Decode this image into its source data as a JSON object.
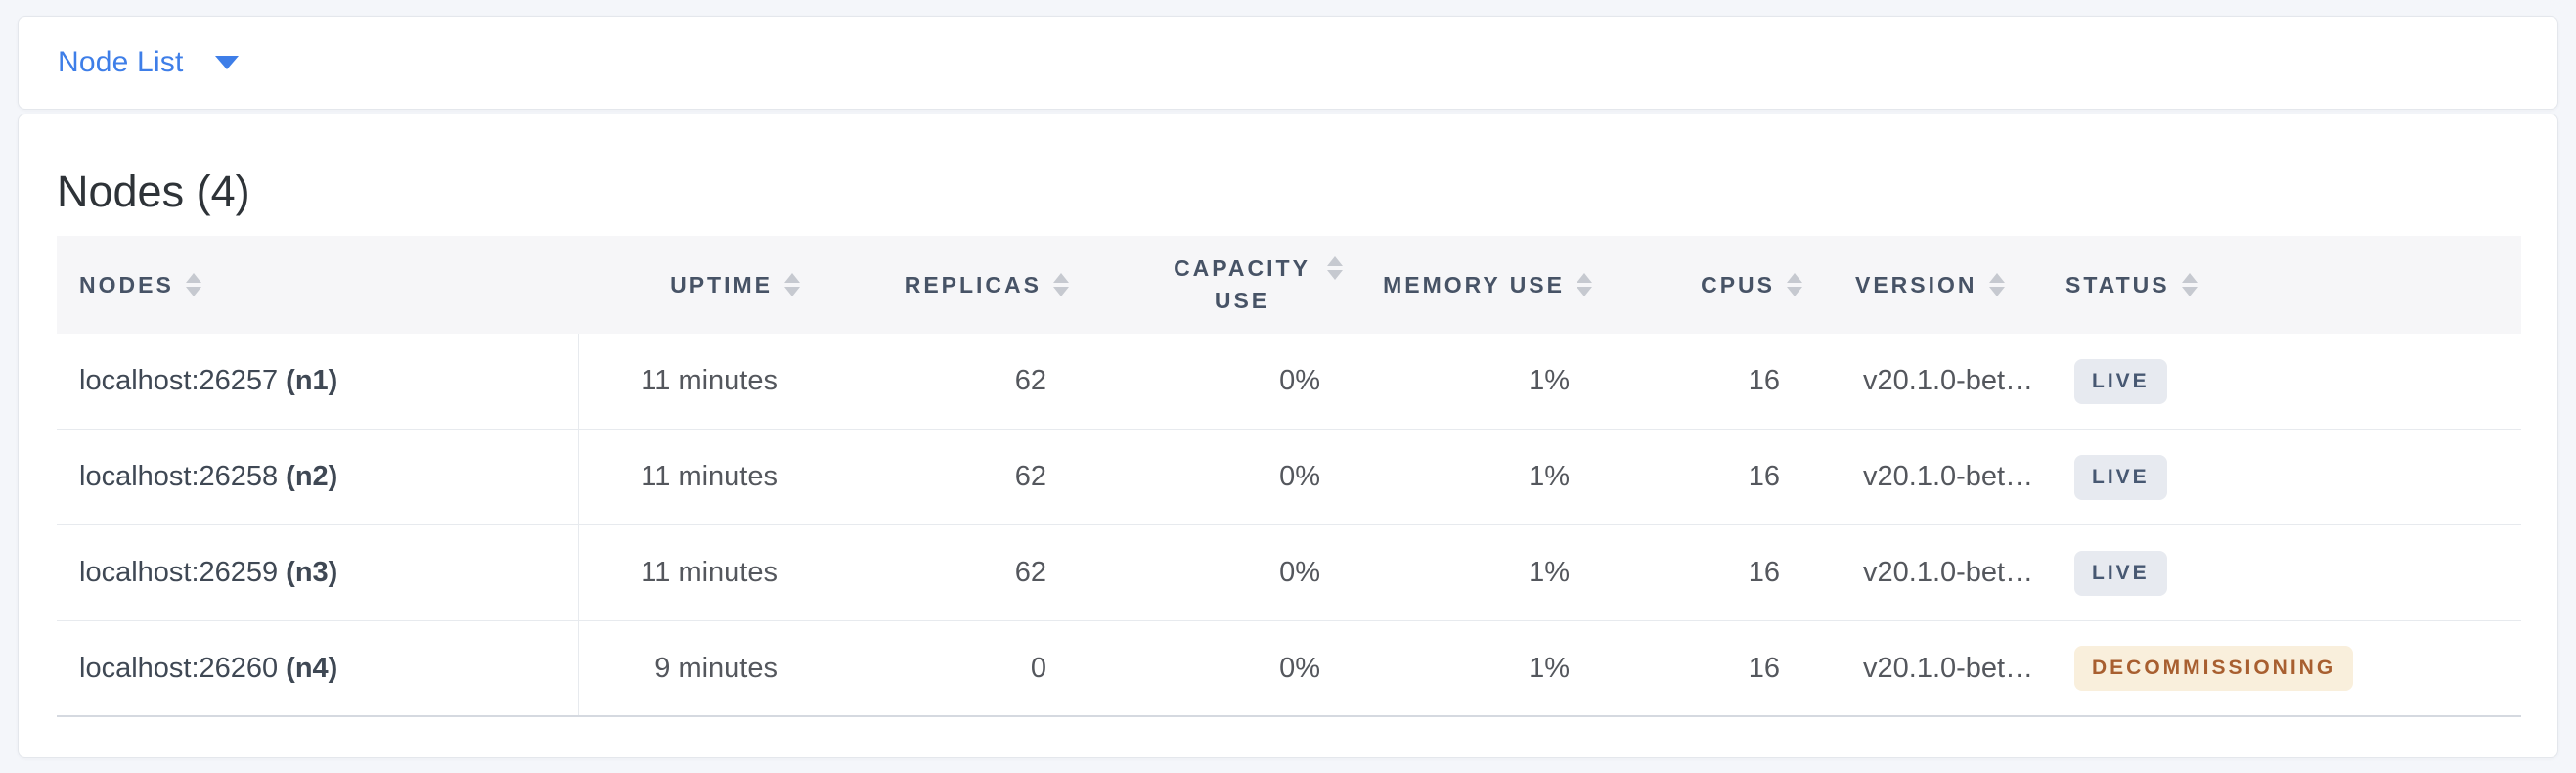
{
  "colors": {
    "accent_blue": "#3E7EE8",
    "page_background": "#F4F6FA",
    "header_text": "#475366",
    "live_badge_bg": "#E7EAF0",
    "live_badge_text": "#475872",
    "decommissioning_badge_bg": "#F9EFDC",
    "decommissioning_badge_text": "#A85F30"
  },
  "selector": {
    "label": "Node List"
  },
  "panel": {
    "title": "Nodes (4)"
  },
  "table": {
    "columns": [
      {
        "id": "nodes",
        "label": "NODES"
      },
      {
        "id": "uptime",
        "label": "UPTIME"
      },
      {
        "id": "replicas",
        "label": "REPLICAS"
      },
      {
        "id": "capacity",
        "label": "CAPACITY USE"
      },
      {
        "id": "memory",
        "label": "MEMORY USE"
      },
      {
        "id": "cpus",
        "label": "CPUS"
      },
      {
        "id": "version",
        "label": "VERSION"
      },
      {
        "id": "status",
        "label": "STATUS"
      }
    ],
    "rows": [
      {
        "address": "localhost:26257",
        "node_id": "(n1)",
        "uptime": "11 minutes",
        "replicas": "62",
        "capacity_use": "0%",
        "memory_use": "1%",
        "cpus": "16",
        "version": "v20.1.0-bet…",
        "status": "LIVE",
        "status_variant": "live"
      },
      {
        "address": "localhost:26258",
        "node_id": "(n2)",
        "uptime": "11 minutes",
        "replicas": "62",
        "capacity_use": "0%",
        "memory_use": "1%",
        "cpus": "16",
        "version": "v20.1.0-bet…",
        "status": "LIVE",
        "status_variant": "live"
      },
      {
        "address": "localhost:26259",
        "node_id": "(n3)",
        "uptime": "11 minutes",
        "replicas": "62",
        "capacity_use": "0%",
        "memory_use": "1%",
        "cpus": "16",
        "version": "v20.1.0-bet…",
        "status": "LIVE",
        "status_variant": "live"
      },
      {
        "address": "localhost:26260",
        "node_id": "(n4)",
        "uptime": "9 minutes",
        "replicas": "0",
        "capacity_use": "0%",
        "memory_use": "1%",
        "cpus": "16",
        "version": "v20.1.0-bet…",
        "status": "DECOMMISSIONING",
        "status_variant": "decommissioning"
      }
    ]
  }
}
